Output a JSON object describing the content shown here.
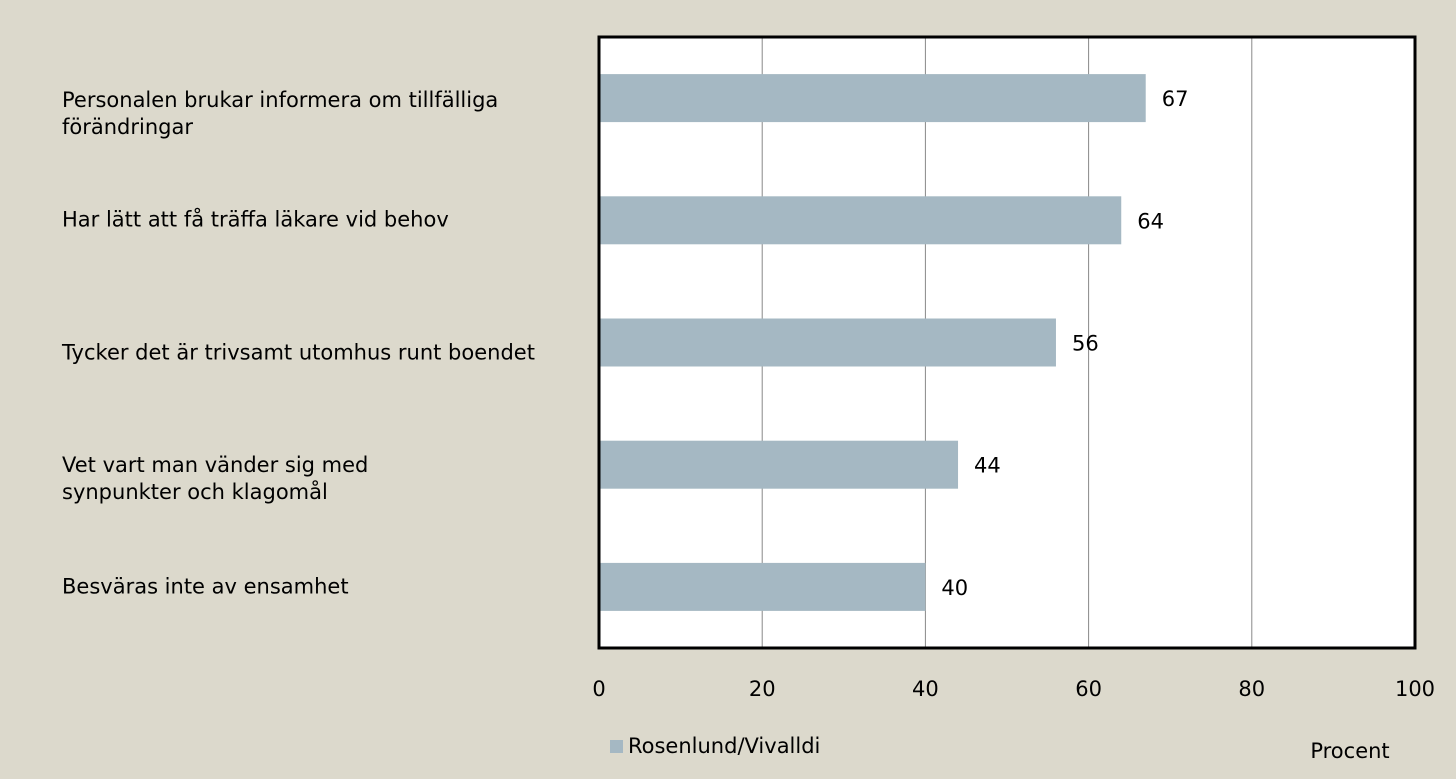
{
  "chart_data": {
    "type": "bar",
    "orientation": "horizontal",
    "categories": [
      "Personalen brukar informera om tillfälliga förändringar",
      "Har lätt att få träffa läkare vid behov",
      "Tycker det är trivsamt utomhus runt boendet",
      "Vet vart man vänder sig med synpunkter och klagomål",
      "Besväras inte av ensamhet"
    ],
    "series": [
      {
        "name": "Rosenlund/Vivalldi",
        "color": "#a5b8c3",
        "values": [
          67,
          64,
          56,
          44,
          40
        ]
      }
    ],
    "xlim": [
      0,
      100
    ],
    "xticks": [
      0,
      20,
      40,
      60,
      80,
      100
    ],
    "xlabel": "Procent",
    "grid": true,
    "legend": "bottom"
  }
}
